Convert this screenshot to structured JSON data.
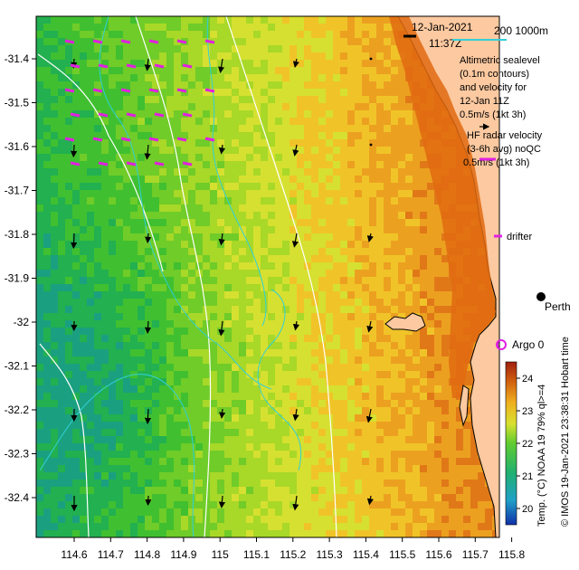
{
  "header": {
    "date": "12-Jan-2021",
    "time": "11:37Z",
    "scale_label": "200  1000m"
  },
  "legend": {
    "altimetric_lines": [
      "Altimetric sealevel",
      "(0.1m contours)",
      "and velocity for",
      "12-Jan 11Z",
      "0.5m/s (1kt 3h)"
    ],
    "hf_lines": [
      "HF radar velocity",
      "(3-6h avg) noQC",
      "0.5m/s (1kt 3h)"
    ],
    "drifter_label": "drifter",
    "argo_label": "Argo 0",
    "city_label": "Perth"
  },
  "axes": {
    "x_ticks": [
      "114.6",
      "114.7",
      "114.8",
      "114.9",
      "115",
      "115.1",
      "115.2",
      "115.3",
      "115.4",
      "115.5",
      "115.6",
      "115.7",
      "115.8"
    ],
    "y_ticks": [
      "-31.4",
      "-31.5",
      "-31.6",
      "-31.7",
      "-31.8",
      "-31.9",
      "-32",
      "-32.1",
      "-32.2",
      "-32.3",
      "-32.4"
    ]
  },
  "colorbar": {
    "ticks": [
      "24",
      "23",
      "22",
      "21",
      "20"
    ],
    "label": "Temp. (°C) NOAA 19 79% ql>=4",
    "min": 19.5,
    "max": 24.5
  },
  "credit": "© IMOS 19-Jan-2021 23:38:31 Hobart time",
  "colors": {
    "land": "#fcc9a0",
    "hf_arrow": "#e020e0",
    "contour": "#30d0d8",
    "argo": "#e020e0"
  }
}
